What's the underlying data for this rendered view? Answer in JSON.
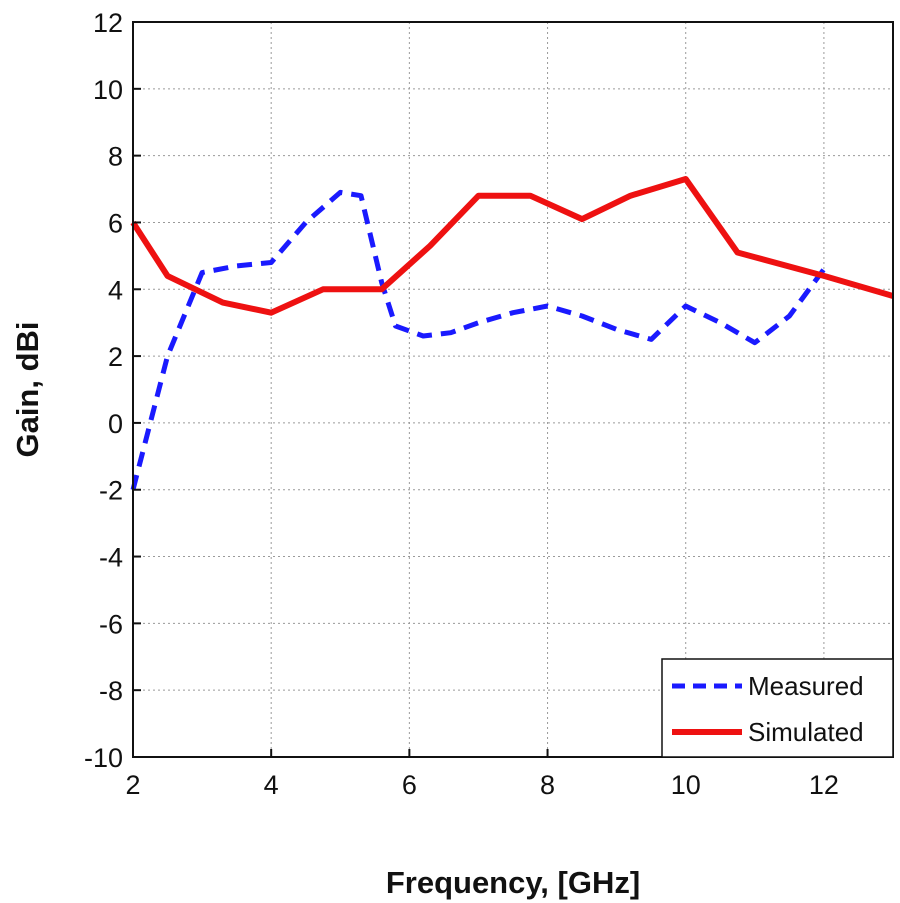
{
  "chart_data": {
    "type": "line",
    "title": "",
    "xlabel": "Frequency, [GHz]",
    "ylabel": "Gain, dBi",
    "xlim": [
      2,
      13
    ],
    "ylim": [
      -10,
      12
    ],
    "xticks": [
      2,
      4,
      6,
      8,
      10,
      12
    ],
    "yticks": [
      -10,
      -8,
      -6,
      -4,
      -2,
      0,
      2,
      4,
      6,
      8,
      10,
      12
    ],
    "grid": true,
    "legend_position": "bottom-right",
    "colors": {
      "Measured": "#1a1aff",
      "Simulated": "#ee1111"
    },
    "series": [
      {
        "name": "Measured",
        "style": "dashed",
        "x": [
          2,
          2.5,
          3,
          3.5,
          4,
          4.5,
          5,
          5.3,
          5.6,
          5.8,
          6.2,
          6.6,
          7,
          7.5,
          8,
          8.5,
          9,
          9.5,
          10,
          10.5,
          11,
          11.5,
          12
        ],
        "y": [
          -2,
          2,
          4.5,
          4.7,
          4.8,
          6,
          6.9,
          6.8,
          4.2,
          2.9,
          2.6,
          2.7,
          3,
          3.3,
          3.5,
          3.2,
          2.8,
          2.5,
          3.5,
          3,
          2.4,
          3.2,
          4.6
        ]
      },
      {
        "name": "Simulated",
        "style": "solid",
        "x": [
          2,
          2.5,
          3.3,
          4,
          4.75,
          5.6,
          6.3,
          7,
          7.75,
          8.5,
          9.2,
          10,
          10.75,
          12,
          13
        ],
        "y": [
          6,
          4.4,
          3.6,
          3.3,
          4,
          4,
          5.3,
          6.8,
          6.8,
          6.1,
          6.8,
          7.3,
          5.1,
          4.4,
          3.8
        ]
      }
    ]
  }
}
